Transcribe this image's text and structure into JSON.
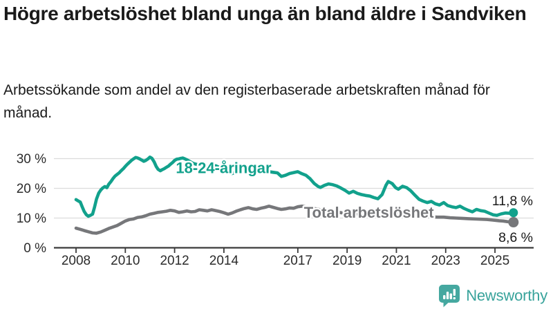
{
  "header": {
    "title": "Högre arbetslöshet bland unga än bland äldre i Sandviken",
    "subtitle": "Arbetssökande som andel av den registerbaserade arbetskraften månad för månad."
  },
  "brand": {
    "name": "Newsworthy",
    "logo_icon": "bar-chart-speech-bubble-icon",
    "color": "#38a39b"
  },
  "colors": {
    "young_series": "#12a18c",
    "total_series": "#76777a",
    "grid": "#dcdcdc",
    "axis": "#3a3a3a",
    "text": "#1a1a1a",
    "tick_text": "#2b2b2b"
  },
  "chart_data": {
    "type": "line",
    "title": "Högre arbetslöshet bland unga än bland äldre i Sandviken",
    "xlabel": "",
    "ylabel": "",
    "x_ticks": [
      {
        "value": 2008,
        "label": "2008"
      },
      {
        "value": 2010,
        "label": "2010"
      },
      {
        "value": 2012,
        "label": "2012"
      },
      {
        "value": 2014,
        "label": "2014"
      },
      {
        "value": 2017,
        "label": "2017"
      },
      {
        "value": 2019,
        "label": "2019"
      },
      {
        "value": 2021,
        "label": "2021"
      },
      {
        "value": 2023,
        "label": "2023"
      },
      {
        "value": 2025,
        "label": "2025"
      }
    ],
    "y_ticks": [
      {
        "value": 0,
        "label": "0 %"
      },
      {
        "value": 10,
        "label": "10 %"
      },
      {
        "value": 20,
        "label": "20 %"
      },
      {
        "value": 30,
        "label": "30 %"
      }
    ],
    "ylim": [
      0,
      33
    ],
    "grid": "horizontal",
    "legend_position": "inline-labels",
    "series": [
      {
        "name": "18-24-åringar",
        "color": "#12a18c",
        "end_label": "11,8 %",
        "label_anchor": {
          "x": 2012.05,
          "y": 27.0
        },
        "points": [
          [
            2008.0,
            16.2
          ],
          [
            2008.08,
            15.8
          ],
          [
            2008.17,
            15.4
          ],
          [
            2008.25,
            13.8
          ],
          [
            2008.33,
            12.2
          ],
          [
            2008.42,
            11.1
          ],
          [
            2008.5,
            10.6
          ],
          [
            2008.58,
            10.9
          ],
          [
            2008.67,
            11.3
          ],
          [
            2008.75,
            13.6
          ],
          [
            2008.83,
            16.4
          ],
          [
            2008.92,
            18.4
          ],
          [
            2009.0,
            19.4
          ],
          [
            2009.08,
            20.1
          ],
          [
            2009.17,
            20.6
          ],
          [
            2009.25,
            20.2
          ],
          [
            2009.33,
            21.4
          ],
          [
            2009.42,
            22.3
          ],
          [
            2009.5,
            23.3
          ],
          [
            2009.58,
            24.1
          ],
          [
            2009.67,
            24.7
          ],
          [
            2009.75,
            25.2
          ],
          [
            2009.83,
            25.9
          ],
          [
            2009.92,
            26.6
          ],
          [
            2010.0,
            27.4
          ],
          [
            2010.08,
            28.1
          ],
          [
            2010.17,
            28.8
          ],
          [
            2010.25,
            29.4
          ],
          [
            2010.33,
            29.9
          ],
          [
            2010.42,
            30.4
          ],
          [
            2010.5,
            30.2
          ],
          [
            2010.58,
            29.9
          ],
          [
            2010.67,
            29.5
          ],
          [
            2010.75,
            29.1
          ],
          [
            2010.83,
            29.4
          ],
          [
            2010.92,
            29.9
          ],
          [
            2011.0,
            30.5
          ],
          [
            2011.08,
            30.1
          ],
          [
            2011.17,
            28.9
          ],
          [
            2011.25,
            27.4
          ],
          [
            2011.33,
            26.4
          ],
          [
            2011.42,
            25.9
          ],
          [
            2011.5,
            26.3
          ],
          [
            2011.58,
            26.6
          ],
          [
            2011.67,
            27.1
          ],
          [
            2011.75,
            27.5
          ],
          [
            2011.83,
            28.1
          ],
          [
            2011.92,
            28.7
          ],
          [
            2012.0,
            29.4
          ],
          [
            2012.08,
            29.8
          ],
          [
            2012.17,
            29.9
          ],
          [
            2012.25,
            30.1
          ],
          [
            2012.33,
            30.2
          ],
          [
            2012.42,
            29.9
          ],
          [
            2012.5,
            29.6
          ],
          [
            2012.58,
            29.2
          ],
          [
            2012.67,
            28.8
          ],
          [
            2012.75,
            28.4
          ],
          [
            2012.83,
            28.2
          ],
          [
            2012.92,
            28.0
          ],
          [
            2013.0,
            27.8
          ],
          [
            2013.17,
            27.2
          ],
          [
            2013.33,
            26.8
          ],
          [
            2013.5,
            27.2
          ],
          [
            2013.67,
            27.6
          ],
          [
            2013.83,
            27.0
          ],
          [
            2014.0,
            26.4
          ],
          [
            2014.17,
            25.6
          ],
          [
            2014.33,
            25.0
          ],
          [
            2014.5,
            25.4
          ],
          [
            2014.67,
            25.9
          ],
          [
            2014.83,
            26.2
          ],
          [
            2015.0,
            26.6
          ],
          [
            2015.17,
            26.2
          ],
          [
            2015.33,
            25.8
          ],
          [
            2015.5,
            25.4
          ],
          [
            2015.67,
            25.8
          ],
          [
            2015.83,
            25.6
          ],
          [
            2016.0,
            25.4
          ],
          [
            2016.17,
            25.2
          ],
          [
            2016.33,
            24.0
          ],
          [
            2016.5,
            24.4
          ],
          [
            2016.67,
            25.0
          ],
          [
            2016.83,
            25.3
          ],
          [
            2017.0,
            25.6
          ],
          [
            2017.17,
            24.9
          ],
          [
            2017.33,
            24.4
          ],
          [
            2017.5,
            23.2
          ],
          [
            2017.67,
            21.6
          ],
          [
            2017.83,
            20.6
          ],
          [
            2017.92,
            20.3
          ],
          [
            2018.08,
            21.0
          ],
          [
            2018.25,
            21.5
          ],
          [
            2018.42,
            21.2
          ],
          [
            2018.58,
            20.8
          ],
          [
            2018.75,
            20.1
          ],
          [
            2018.92,
            19.3
          ],
          [
            2019.08,
            18.4
          ],
          [
            2019.25,
            19.0
          ],
          [
            2019.42,
            18.3
          ],
          [
            2019.58,
            17.9
          ],
          [
            2019.75,
            17.6
          ],
          [
            2019.92,
            17.4
          ],
          [
            2020.08,
            16.9
          ],
          [
            2020.25,
            16.5
          ],
          [
            2020.42,
            17.9
          ],
          [
            2020.58,
            21.1
          ],
          [
            2020.67,
            22.3
          ],
          [
            2020.83,
            21.6
          ],
          [
            2020.97,
            20.2
          ],
          [
            2021.08,
            19.7
          ],
          [
            2021.25,
            20.7
          ],
          [
            2021.42,
            20.2
          ],
          [
            2021.58,
            19.2
          ],
          [
            2021.75,
            17.7
          ],
          [
            2021.92,
            16.3
          ],
          [
            2022.08,
            15.7
          ],
          [
            2022.25,
            15.2
          ],
          [
            2022.42,
            15.6
          ],
          [
            2022.58,
            14.8
          ],
          [
            2022.75,
            14.4
          ],
          [
            2022.92,
            15.2
          ],
          [
            2023.08,
            14.2
          ],
          [
            2023.25,
            13.8
          ],
          [
            2023.42,
            13.5
          ],
          [
            2023.58,
            14.0
          ],
          [
            2023.75,
            13.2
          ],
          [
            2023.92,
            12.6
          ],
          [
            2024.08,
            12.1
          ],
          [
            2024.25,
            12.9
          ],
          [
            2024.42,
            12.5
          ],
          [
            2024.58,
            12.3
          ],
          [
            2024.75,
            11.7
          ],
          [
            2024.92,
            11.1
          ],
          [
            2025.08,
            10.9
          ],
          [
            2025.25,
            11.4
          ],
          [
            2025.42,
            11.7
          ],
          [
            2025.58,
            11.6
          ],
          [
            2025.75,
            11.8
          ]
        ]
      },
      {
        "name": "Total arbetslöshet",
        "color": "#76777a",
        "end_label": "8,6 %",
        "label_anchor": {
          "x": 2017.25,
          "y": 12.0
        },
        "points": [
          [
            2008.0,
            6.6
          ],
          [
            2008.17,
            6.2
          ],
          [
            2008.33,
            5.8
          ],
          [
            2008.5,
            5.4
          ],
          [
            2008.67,
            5.0
          ],
          [
            2008.83,
            4.9
          ],
          [
            2009.0,
            5.3
          ],
          [
            2009.17,
            5.9
          ],
          [
            2009.33,
            6.5
          ],
          [
            2009.5,
            7.0
          ],
          [
            2009.67,
            7.5
          ],
          [
            2009.83,
            8.2
          ],
          [
            2010.0,
            9.0
          ],
          [
            2010.17,
            9.5
          ],
          [
            2010.33,
            9.7
          ],
          [
            2010.5,
            10.2
          ],
          [
            2010.67,
            10.4
          ],
          [
            2010.83,
            10.8
          ],
          [
            2011.0,
            11.3
          ],
          [
            2011.17,
            11.6
          ],
          [
            2011.33,
            11.9
          ],
          [
            2011.5,
            12.1
          ],
          [
            2011.67,
            12.3
          ],
          [
            2011.83,
            12.6
          ],
          [
            2012.0,
            12.4
          ],
          [
            2012.17,
            11.9
          ],
          [
            2012.33,
            12.1
          ],
          [
            2012.5,
            12.4
          ],
          [
            2012.67,
            12.1
          ],
          [
            2012.83,
            12.2
          ],
          [
            2013.0,
            12.8
          ],
          [
            2013.17,
            12.6
          ],
          [
            2013.33,
            12.4
          ],
          [
            2013.5,
            12.8
          ],
          [
            2013.67,
            12.5
          ],
          [
            2013.83,
            12.2
          ],
          [
            2014.0,
            11.8
          ],
          [
            2014.17,
            11.3
          ],
          [
            2014.33,
            11.7
          ],
          [
            2014.5,
            12.3
          ],
          [
            2014.67,
            12.8
          ],
          [
            2014.83,
            13.2
          ],
          [
            2015.0,
            13.5
          ],
          [
            2015.17,
            13.1
          ],
          [
            2015.33,
            12.9
          ],
          [
            2015.5,
            13.3
          ],
          [
            2015.67,
            13.6
          ],
          [
            2015.83,
            14.0
          ],
          [
            2016.0,
            13.6
          ],
          [
            2016.17,
            13.2
          ],
          [
            2016.33,
            12.9
          ],
          [
            2016.5,
            13.1
          ],
          [
            2016.67,
            13.4
          ],
          [
            2016.83,
            13.3
          ],
          [
            2017.0,
            13.8
          ],
          [
            2017.17,
            14.0
          ],
          [
            2017.42,
            13.6
          ],
          [
            2017.67,
            13.2
          ],
          [
            2017.92,
            12.8
          ],
          [
            2018.17,
            12.4
          ],
          [
            2018.42,
            12.2
          ],
          [
            2018.67,
            11.9
          ],
          [
            2018.92,
            11.6
          ],
          [
            2019.17,
            11.5
          ],
          [
            2019.42,
            11.4
          ],
          [
            2019.67,
            11.3
          ],
          [
            2019.92,
            11.2
          ],
          [
            2020.17,
            11.4
          ],
          [
            2020.42,
            11.9
          ],
          [
            2020.67,
            12.4
          ],
          [
            2020.92,
            12.2
          ],
          [
            2021.17,
            11.9
          ],
          [
            2021.42,
            11.6
          ],
          [
            2021.67,
            11.2
          ],
          [
            2021.92,
            10.9
          ],
          [
            2022.17,
            10.6
          ],
          [
            2022.42,
            10.4
          ],
          [
            2022.67,
            10.3
          ],
          [
            2022.92,
            10.3
          ],
          [
            2023.17,
            10.1
          ],
          [
            2023.42,
            10.0
          ],
          [
            2023.67,
            9.9
          ],
          [
            2023.92,
            9.8
          ],
          [
            2024.17,
            9.7
          ],
          [
            2024.42,
            9.6
          ],
          [
            2024.67,
            9.5
          ],
          [
            2024.92,
            9.3
          ],
          [
            2025.17,
            9.1
          ],
          [
            2025.33,
            9.0
          ],
          [
            2025.5,
            8.8
          ],
          [
            2025.75,
            8.6
          ]
        ]
      }
    ]
  }
}
